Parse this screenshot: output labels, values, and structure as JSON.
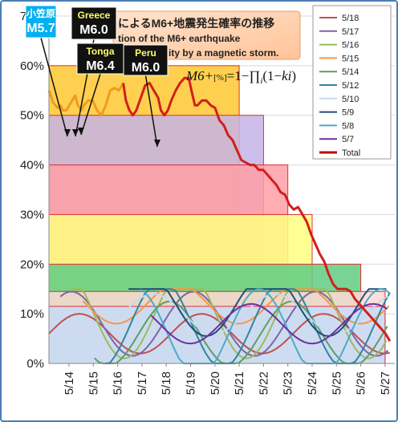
{
  "chart_data": {
    "type": "area",
    "title_line1": "によるM6+地震発生確率の推移",
    "title_line2": "tion of the M6+ earthquake",
    "title_line3": "bility by a magnetic storm.",
    "formula_main": "M6+",
    "formula_unit": "[%]",
    "formula_rest": "=1−∏",
    "formula_sub": "i",
    "formula_tail": "(1−",
    "formula_k": "ki",
    "formula_end": ")",
    "y_ticks": [
      "0%",
      "10%",
      "20%",
      "30%",
      "40%",
      "50%",
      "60%",
      "70%"
    ],
    "ylim": [
      0,
      70
    ],
    "x_ticks": [
      "5/14",
      "5/15",
      "5/16",
      "5/17",
      "5/18",
      "5/19",
      "5/20",
      "5/21",
      "5/22",
      "5/23",
      "5/24",
      "5/25",
      "5/26",
      "5/27"
    ],
    "levels": [
      {
        "value": 60,
        "end": "5/21",
        "fill": "#ffc830",
        "stroke": "#e03030"
      },
      {
        "value": 50,
        "end": "5/22",
        "fill": "#c6b4e6",
        "stroke": "#e03030"
      },
      {
        "value": 40,
        "end": "5/23",
        "fill": "#ff9da6",
        "stroke": "#e03030"
      },
      {
        "value": 30,
        "end": "5/24",
        "fill": "#ffff80",
        "stroke": "#e03030"
      },
      {
        "value": 20,
        "end": "5/26",
        "fill": "#5fcc83",
        "stroke": "#e03030"
      },
      {
        "value": 14.5,
        "end": "5/27",
        "fill": "#ffd9d6",
        "stroke": "#e03030"
      },
      {
        "value": 11.5,
        "end": "5/27",
        "fill": "#c8dcf8",
        "stroke": "#e03030"
      }
    ],
    "total_series": {
      "name": "Total",
      "color": "#d0201a",
      "points": [
        [
          0,
          55
        ],
        [
          0.5,
          52.5
        ],
        [
          1,
          51.5
        ],
        [
          1.3,
          52
        ],
        [
          1.6,
          51
        ],
        [
          2,
          51
        ],
        [
          2.5,
          52.5
        ],
        [
          3,
          54
        ],
        [
          3.3,
          52
        ],
        [
          3.7,
          51
        ],
        [
          4,
          52
        ],
        [
          4.5,
          53
        ],
        [
          5,
          53
        ],
        [
          5.5,
          51
        ],
        [
          6,
          50
        ],
        [
          6.5,
          52
        ],
        [
          7,
          55
        ],
        [
          7.5,
          55.5
        ],
        [
          8,
          55
        ],
        [
          8.5,
          56.5
        ],
        [
          8.8,
          53
        ],
        [
          9.2,
          51
        ],
        [
          9.6,
          50
        ],
        [
          10,
          51
        ],
        [
          10.5,
          53.5
        ],
        [
          11,
          56
        ],
        [
          11.5,
          56.5
        ],
        [
          12,
          55
        ],
        [
          12.5,
          53.5
        ],
        [
          12.8,
          51
        ],
        [
          13.2,
          50
        ],
        [
          13.6,
          51
        ],
        [
          14,
          53
        ],
        [
          14.5,
          55
        ],
        [
          15,
          56.5
        ],
        [
          15.5,
          57.5
        ],
        [
          16,
          57.5
        ],
        [
          16.3,
          55
        ],
        [
          16.7,
          52
        ],
        [
          17,
          52
        ],
        [
          17.5,
          53
        ],
        [
          18,
          53
        ],
        [
          18.5,
          52
        ],
        [
          19,
          51.5
        ],
        [
          19.5,
          49
        ],
        [
          20,
          48
        ],
        [
          20.5,
          46
        ],
        [
          21,
          45
        ],
        [
          21.5,
          43
        ],
        [
          22,
          41
        ],
        [
          22.5,
          40.5
        ],
        [
          23,
          40
        ],
        [
          23.5,
          40
        ],
        [
          24,
          39
        ],
        [
          24.5,
          39
        ],
        [
          25,
          38
        ],
        [
          25.5,
          37
        ],
        [
          26,
          36
        ],
        [
          26.5,
          34.5
        ],
        [
          27,
          34
        ],
        [
          27.5,
          32
        ],
        [
          28,
          31
        ],
        [
          28.5,
          31.5
        ],
        [
          29,
          30
        ],
        [
          29.5,
          28.5
        ],
        [
          30,
          26
        ],
        [
          30.5,
          24
        ],
        [
          31,
          22
        ],
        [
          31.5,
          20.5
        ],
        [
          32,
          18
        ],
        [
          32.5,
          16
        ],
        [
          33,
          15
        ],
        [
          33.5,
          15
        ],
        [
          34,
          15
        ],
        [
          34.5,
          14.5
        ],
        [
          35,
          13
        ],
        [
          35.5,
          12
        ],
        [
          36,
          11
        ],
        [
          36.5,
          10
        ],
        [
          37,
          9
        ],
        [
          37.5,
          8
        ],
        [
          38,
          7
        ],
        [
          38.5,
          6
        ],
        [
          39,
          4.5
        ]
      ]
    },
    "legend": [
      {
        "label": "5/18",
        "color": "#c0504d"
      },
      {
        "label": "5/17",
        "color": "#8064a2"
      },
      {
        "label": "5/16",
        "color": "#9bbb59"
      },
      {
        "label": "5/15",
        "color": "#f79646"
      },
      {
        "label": "5/14",
        "color": "#5b9e63"
      },
      {
        "label": "5/12",
        "color": "#31859c"
      },
      {
        "label": "5/10",
        "color": "#c6d9f1"
      },
      {
        "label": "5/9",
        "color": "#1f4e79"
      },
      {
        "label": "5/8",
        "color": "#4bacc6"
      },
      {
        "label": "5/7",
        "color": "#7030a0"
      },
      {
        "label": "Total",
        "color": "#c00000"
      }
    ],
    "events": [
      {
        "place": "小笠原",
        "mag": "M5.7",
        "bg": "#00b0f0",
        "place_color": "#ffffff",
        "mag_color": "#ffffff"
      },
      {
        "place": "Greece",
        "mag": "M6.0",
        "bg": "#111111",
        "place_color": "#ffff66",
        "mag_color": "#ffffff"
      },
      {
        "place": "Tonga",
        "mag": "M6.4",
        "bg": "#111111",
        "place_color": "#ffff66",
        "mag_color": "#ffffff"
      },
      {
        "place": "Peru",
        "mag": "M6.0",
        "bg": "#111111",
        "place_color": "#ffff66",
        "mag_color": "#ffffff"
      }
    ]
  }
}
